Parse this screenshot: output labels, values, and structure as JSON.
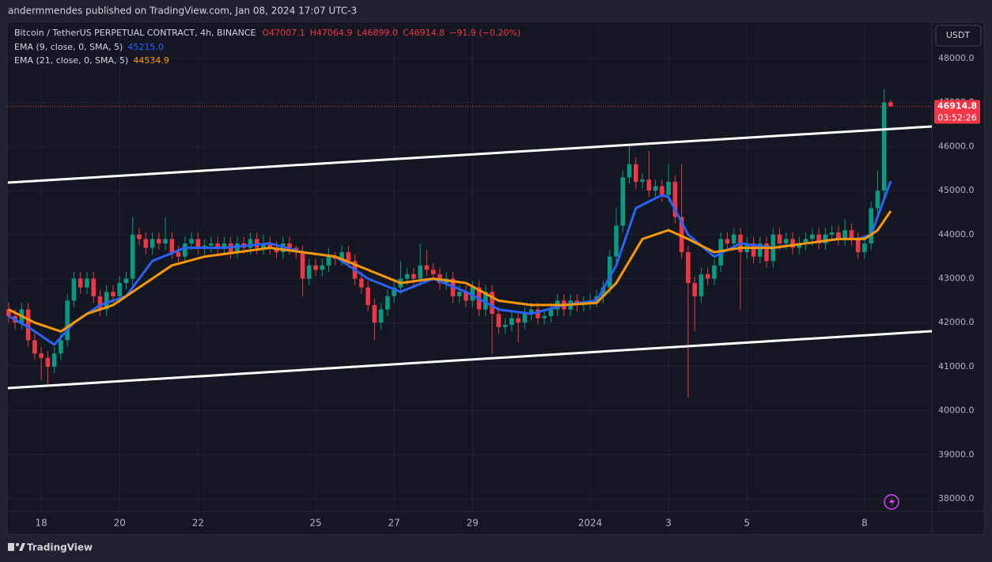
{
  "header": {
    "published": "andermmendes published on TradingView.com, Jan 08, 2024 17:07 UTC-3"
  },
  "footer": {
    "brand": "TradingView"
  },
  "chart_data": {
    "type": "candlestick",
    "symbol": "Bitcoin / TetherUS PERPETUAL CONTRACT, 4h, BINANCE",
    "ohlc_labels": [
      "O47007.1",
      "H47064.9",
      "L46899.0",
      "C46914.8",
      "−91.9 (−0.20%)"
    ],
    "currency": "USDT",
    "countdown": "03:52:26",
    "up_color": "#089981",
    "down_color": "#f23645",
    "ohlc": [
      [
        42300,
        42450,
        42000,
        42150
      ],
      [
        42150,
        42300,
        41850,
        42000
      ],
      [
        42000,
        42450,
        41850,
        42300
      ],
      [
        42300,
        42450,
        41450,
        41600
      ],
      [
        41600,
        41750,
        41150,
        41300
      ],
      [
        41300,
        41450,
        40700,
        41200
      ],
      [
        41200,
        41350,
        40600,
        41000
      ],
      [
        41000,
        41450,
        40850,
        41300
      ],
      [
        41300,
        41750,
        41150,
        41600
      ],
      [
        41600,
        42650,
        41450,
        42500
      ],
      [
        42500,
        43150,
        42350,
        43000
      ],
      [
        43000,
        43150,
        42650,
        42800
      ],
      [
        42800,
        43150,
        42650,
        43000
      ],
      [
        43000,
        43150,
        42450,
        42600
      ],
      [
        42600,
        42750,
        42150,
        42300
      ],
      [
        42300,
        42850,
        42150,
        42700
      ],
      [
        42700,
        42850,
        42450,
        42600
      ],
      [
        42600,
        43050,
        42450,
        42900
      ],
      [
        42900,
        43150,
        42750,
        43000
      ],
      [
        43000,
        44400,
        42850,
        44000
      ],
      [
        44000,
        44150,
        43750,
        43900
      ],
      [
        43900,
        44050,
        43550,
        43700
      ],
      [
        43700,
        44050,
        43550,
        43900
      ],
      [
        43900,
        44050,
        43650,
        43800
      ],
      [
        43800,
        44400,
        43650,
        43900
      ],
      [
        43900,
        44050,
        43450,
        43600
      ],
      [
        43600,
        43750,
        43350,
        43500
      ],
      [
        43500,
        43950,
        43350,
        43800
      ],
      [
        43800,
        44050,
        43650,
        43900
      ],
      [
        43900,
        44050,
        43550,
        43700
      ],
      [
        43700,
        43900,
        43550,
        43750
      ],
      [
        43750,
        43950,
        43600,
        43800
      ],
      [
        43800,
        43950,
        43550,
        43700
      ],
      [
        43700,
        43950,
        43550,
        43800
      ],
      [
        43800,
        43950,
        43450,
        43600
      ],
      [
        43600,
        43950,
        43450,
        43800
      ],
      [
        43800,
        43950,
        43550,
        43700
      ],
      [
        43700,
        44050,
        43550,
        43900
      ],
      [
        43900,
        44050,
        43550,
        43700
      ],
      [
        43700,
        44000,
        43550,
        43800
      ],
      [
        43800,
        43950,
        43550,
        43700
      ],
      [
        43700,
        43850,
        43450,
        43600
      ],
      [
        43600,
        43950,
        43450,
        43800
      ],
      [
        43800,
        43950,
        43550,
        43700
      ],
      [
        43700,
        43750,
        43450,
        43600
      ],
      [
        43600,
        43750,
        42600,
        43000
      ],
      [
        43000,
        43450,
        42850,
        43300
      ],
      [
        43300,
        43450,
        43050,
        43200
      ],
      [
        43200,
        43450,
        43050,
        43300
      ],
      [
        43300,
        43700,
        43150,
        43500
      ],
      [
        43500,
        43600,
        43300,
        43450
      ],
      [
        43450,
        43750,
        43300,
        43600
      ],
      [
        43600,
        43750,
        43250,
        43400
      ],
      [
        43400,
        43550,
        42850,
        43000
      ],
      [
        43000,
        43150,
        42650,
        42800
      ],
      [
        42800,
        42950,
        42250,
        42400
      ],
      [
        42400,
        42550,
        41600,
        42000
      ],
      [
        42000,
        42450,
        41850,
        42300
      ],
      [
        42300,
        42750,
        42150,
        42600
      ],
      [
        42600,
        42950,
        42450,
        42800
      ],
      [
        42800,
        43400,
        42650,
        43000
      ],
      [
        43000,
        43250,
        42850,
        43100
      ],
      [
        43100,
        43250,
        42850,
        43000
      ],
      [
        43000,
        43800,
        42850,
        43300
      ],
      [
        43300,
        43650,
        43050,
        43200
      ],
      [
        43200,
        43350,
        42950,
        43100
      ],
      [
        43100,
        43250,
        42750,
        42900
      ],
      [
        42900,
        43150,
        42750,
        43000
      ],
      [
        43000,
        43150,
        42450,
        42600
      ],
      [
        42600,
        42850,
        42450,
        42700
      ],
      [
        42700,
        42850,
        42350,
        42500
      ],
      [
        42500,
        42950,
        42350,
        42800
      ],
      [
        42800,
        42950,
        42150,
        42300
      ],
      [
        42300,
        42850,
        42150,
        42700
      ],
      [
        42700,
        42850,
        41300,
        42200
      ],
      [
        42200,
        42350,
        41750,
        41900
      ],
      [
        41900,
        42100,
        41750,
        41950
      ],
      [
        41950,
        42250,
        41800,
        42100
      ],
      [
        42100,
        42250,
        41550,
        42000
      ],
      [
        42000,
        42350,
        41850,
        42200
      ],
      [
        42200,
        42450,
        42050,
        42300
      ],
      [
        42300,
        42450,
        41950,
        42100
      ],
      [
        42100,
        42300,
        41950,
        42150
      ],
      [
        42150,
        42450,
        42000,
        42300
      ],
      [
        42300,
        42650,
        42150,
        42500
      ],
      [
        42500,
        42650,
        42150,
        42300
      ],
      [
        42300,
        42650,
        42150,
        42500
      ],
      [
        42500,
        42650,
        42250,
        42400
      ],
      [
        42400,
        42600,
        42250,
        42450
      ],
      [
        42450,
        42650,
        42300,
        42500
      ],
      [
        42500,
        42750,
        42350,
        42600
      ],
      [
        42600,
        42950,
        42450,
        42800
      ],
      [
        42800,
        43650,
        42650,
        43500
      ],
      [
        43500,
        44600,
        43350,
        44200
      ],
      [
        44200,
        45450,
        44050,
        45300
      ],
      [
        45300,
        46000,
        45150,
        45600
      ],
      [
        45600,
        45750,
        45050,
        45200
      ],
      [
        45200,
        45400,
        45050,
        45250
      ],
      [
        45250,
        45900,
        44850,
        45000
      ],
      [
        45000,
        45250,
        44850,
        45100
      ],
      [
        45100,
        45250,
        44750,
        44900
      ],
      [
        44900,
        45600,
        44750,
        45200
      ],
      [
        45200,
        45350,
        44250,
        44400
      ],
      [
        44400,
        45600,
        43450,
        43600
      ],
      [
        43600,
        43750,
        40300,
        42900
      ],
      [
        42900,
        43050,
        41800,
        42600
      ],
      [
        42600,
        43250,
        42450,
        43100
      ],
      [
        43100,
        43250,
        42850,
        43000
      ],
      [
        43000,
        43450,
        42850,
        43300
      ],
      [
        43300,
        44050,
        43150,
        43900
      ],
      [
        43900,
        44050,
        43650,
        43800
      ],
      [
        43800,
        44150,
        43650,
        44000
      ],
      [
        44000,
        44150,
        42300,
        43600
      ],
      [
        43600,
        43950,
        43450,
        43800
      ],
      [
        43800,
        43950,
        43350,
        43500
      ],
      [
        43500,
        43950,
        43350,
        43800
      ],
      [
        43800,
        43950,
        43250,
        43400
      ],
      [
        43400,
        44150,
        43250,
        44000
      ],
      [
        44000,
        44150,
        43650,
        43800
      ],
      [
        43800,
        44050,
        43650,
        43900
      ],
      [
        43900,
        44050,
        43550,
        43700
      ],
      [
        43700,
        43950,
        43550,
        43800
      ],
      [
        43800,
        44050,
        43650,
        43900
      ],
      [
        43900,
        44150,
        43750,
        44000
      ],
      [
        44000,
        44150,
        43650,
        43800
      ],
      [
        43800,
        44150,
        43650,
        44000
      ],
      [
        44000,
        44200,
        43850,
        44050
      ],
      [
        44050,
        44200,
        43750,
        43900
      ],
      [
        43900,
        44350,
        43750,
        44100
      ],
      [
        44100,
        44250,
        43750,
        43900
      ],
      [
        43900,
        44050,
        43450,
        43600
      ],
      [
        43600,
        43950,
        43450,
        43800
      ],
      [
        43800,
        44750,
        43650,
        44600
      ],
      [
        44600,
        45450,
        44450,
        45000
      ],
      [
        45000,
        47300,
        44850,
        47000
      ],
      [
        47007.1,
        47064.9,
        46899.0,
        46914.8
      ]
    ],
    "series": [
      {
        "name": "EMA (9, close, 0, SMA, 5)",
        "last_label": "45215.0",
        "color": "#2962ff",
        "x": [
          0,
          3,
          7,
          10,
          14,
          18,
          22,
          27,
          33,
          40,
          45,
          50,
          55,
          60,
          65,
          70,
          75,
          80,
          85,
          90,
          93,
          96,
          100,
          101,
          104,
          108,
          112,
          117,
          122,
          127,
          130,
          132,
          135
        ],
        "values": [
          42150,
          41900,
          41500,
          42000,
          42400,
          42600,
          43400,
          43700,
          43700,
          43800,
          43600,
          43500,
          43000,
          42700,
          43000,
          42700,
          42300,
          42200,
          42400,
          42500,
          43300,
          44600,
          44900,
          44850,
          44000,
          43500,
          43800,
          43700,
          43800,
          43900,
          43900,
          44000,
          45215
        ]
      },
      {
        "name": "EMA (21, close, 0, SMA, 5)",
        "last_label": "44534.9",
        "color": "#ff9800",
        "x": [
          0,
          4,
          8,
          12,
          16,
          20,
          25,
          30,
          35,
          40,
          45,
          50,
          55,
          60,
          65,
          70,
          75,
          80,
          85,
          90,
          93,
          97,
          101,
          104,
          108,
          112,
          117,
          122,
          127,
          131,
          133,
          135
        ],
        "values": [
          42300,
          42000,
          41800,
          42200,
          42400,
          42800,
          43300,
          43500,
          43600,
          43700,
          43600,
          43500,
          43200,
          42900,
          43000,
          42900,
          42500,
          42400,
          42400,
          42450,
          42900,
          43900,
          44100,
          43900,
          43600,
          43700,
          43700,
          43800,
          43900,
          43900,
          44100,
          44534.9
        ]
      }
    ],
    "xlim": [
      -0.1,
      141.3
    ],
    "xticks": [
      {
        "value": 5,
        "label": "18"
      },
      {
        "value": 17,
        "label": "20"
      },
      {
        "value": 29,
        "label": "22"
      },
      {
        "value": 47,
        "label": "25"
      },
      {
        "value": 59,
        "label": "27"
      },
      {
        "value": 71,
        "label": "29"
      },
      {
        "value": 89,
        "label": "2024"
      },
      {
        "value": 101,
        "label": "3"
      },
      {
        "value": 113,
        "label": "5"
      },
      {
        "value": 131,
        "label": "8"
      }
    ],
    "ylim": [
      37210,
      48826
    ],
    "yticks": [
      {
        "value": 38000,
        "label": "38000.0"
      },
      {
        "value": 39000,
        "label": "39000.0"
      },
      {
        "value": 40000,
        "label": "40000.0"
      },
      {
        "value": 41000,
        "label": "41000.0"
      },
      {
        "value": 42000,
        "label": "42000.0"
      },
      {
        "value": 43000,
        "label": "43000.0"
      },
      {
        "value": 44000,
        "label": "44000.0"
      },
      {
        "value": 45000,
        "label": "45000.0"
      },
      {
        "value": 46000,
        "label": "46000.0"
      },
      {
        "value": 47000,
        "label": "47000.0"
      },
      {
        "value": 48000,
        "label": "48000.0"
      }
    ],
    "grid": true
  }
}
